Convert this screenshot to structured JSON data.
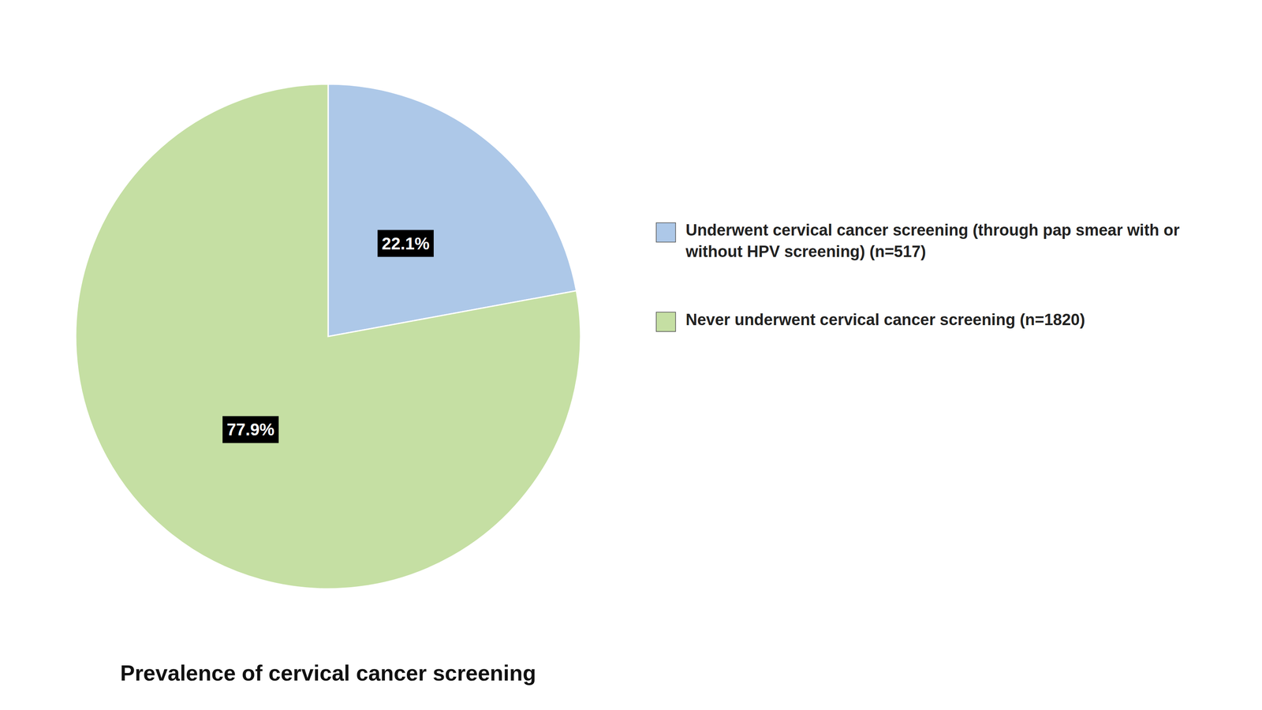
{
  "chart_data": {
    "type": "pie",
    "title": "Prevalence of cervical cancer screening",
    "categories": [
      "Underwent cervical cancer screening (through pap smear with or without HPV screening) (n=517)",
      "Never underwent cervical cancer screening (n=1820)"
    ],
    "values": [
      22.1,
      77.9
    ],
    "value_labels": [
      "22.1%",
      "77.9%"
    ],
    "colors": [
      "#adc8e8",
      "#c5dfa3"
    ],
    "data_labels": true,
    "legend": "right"
  }
}
